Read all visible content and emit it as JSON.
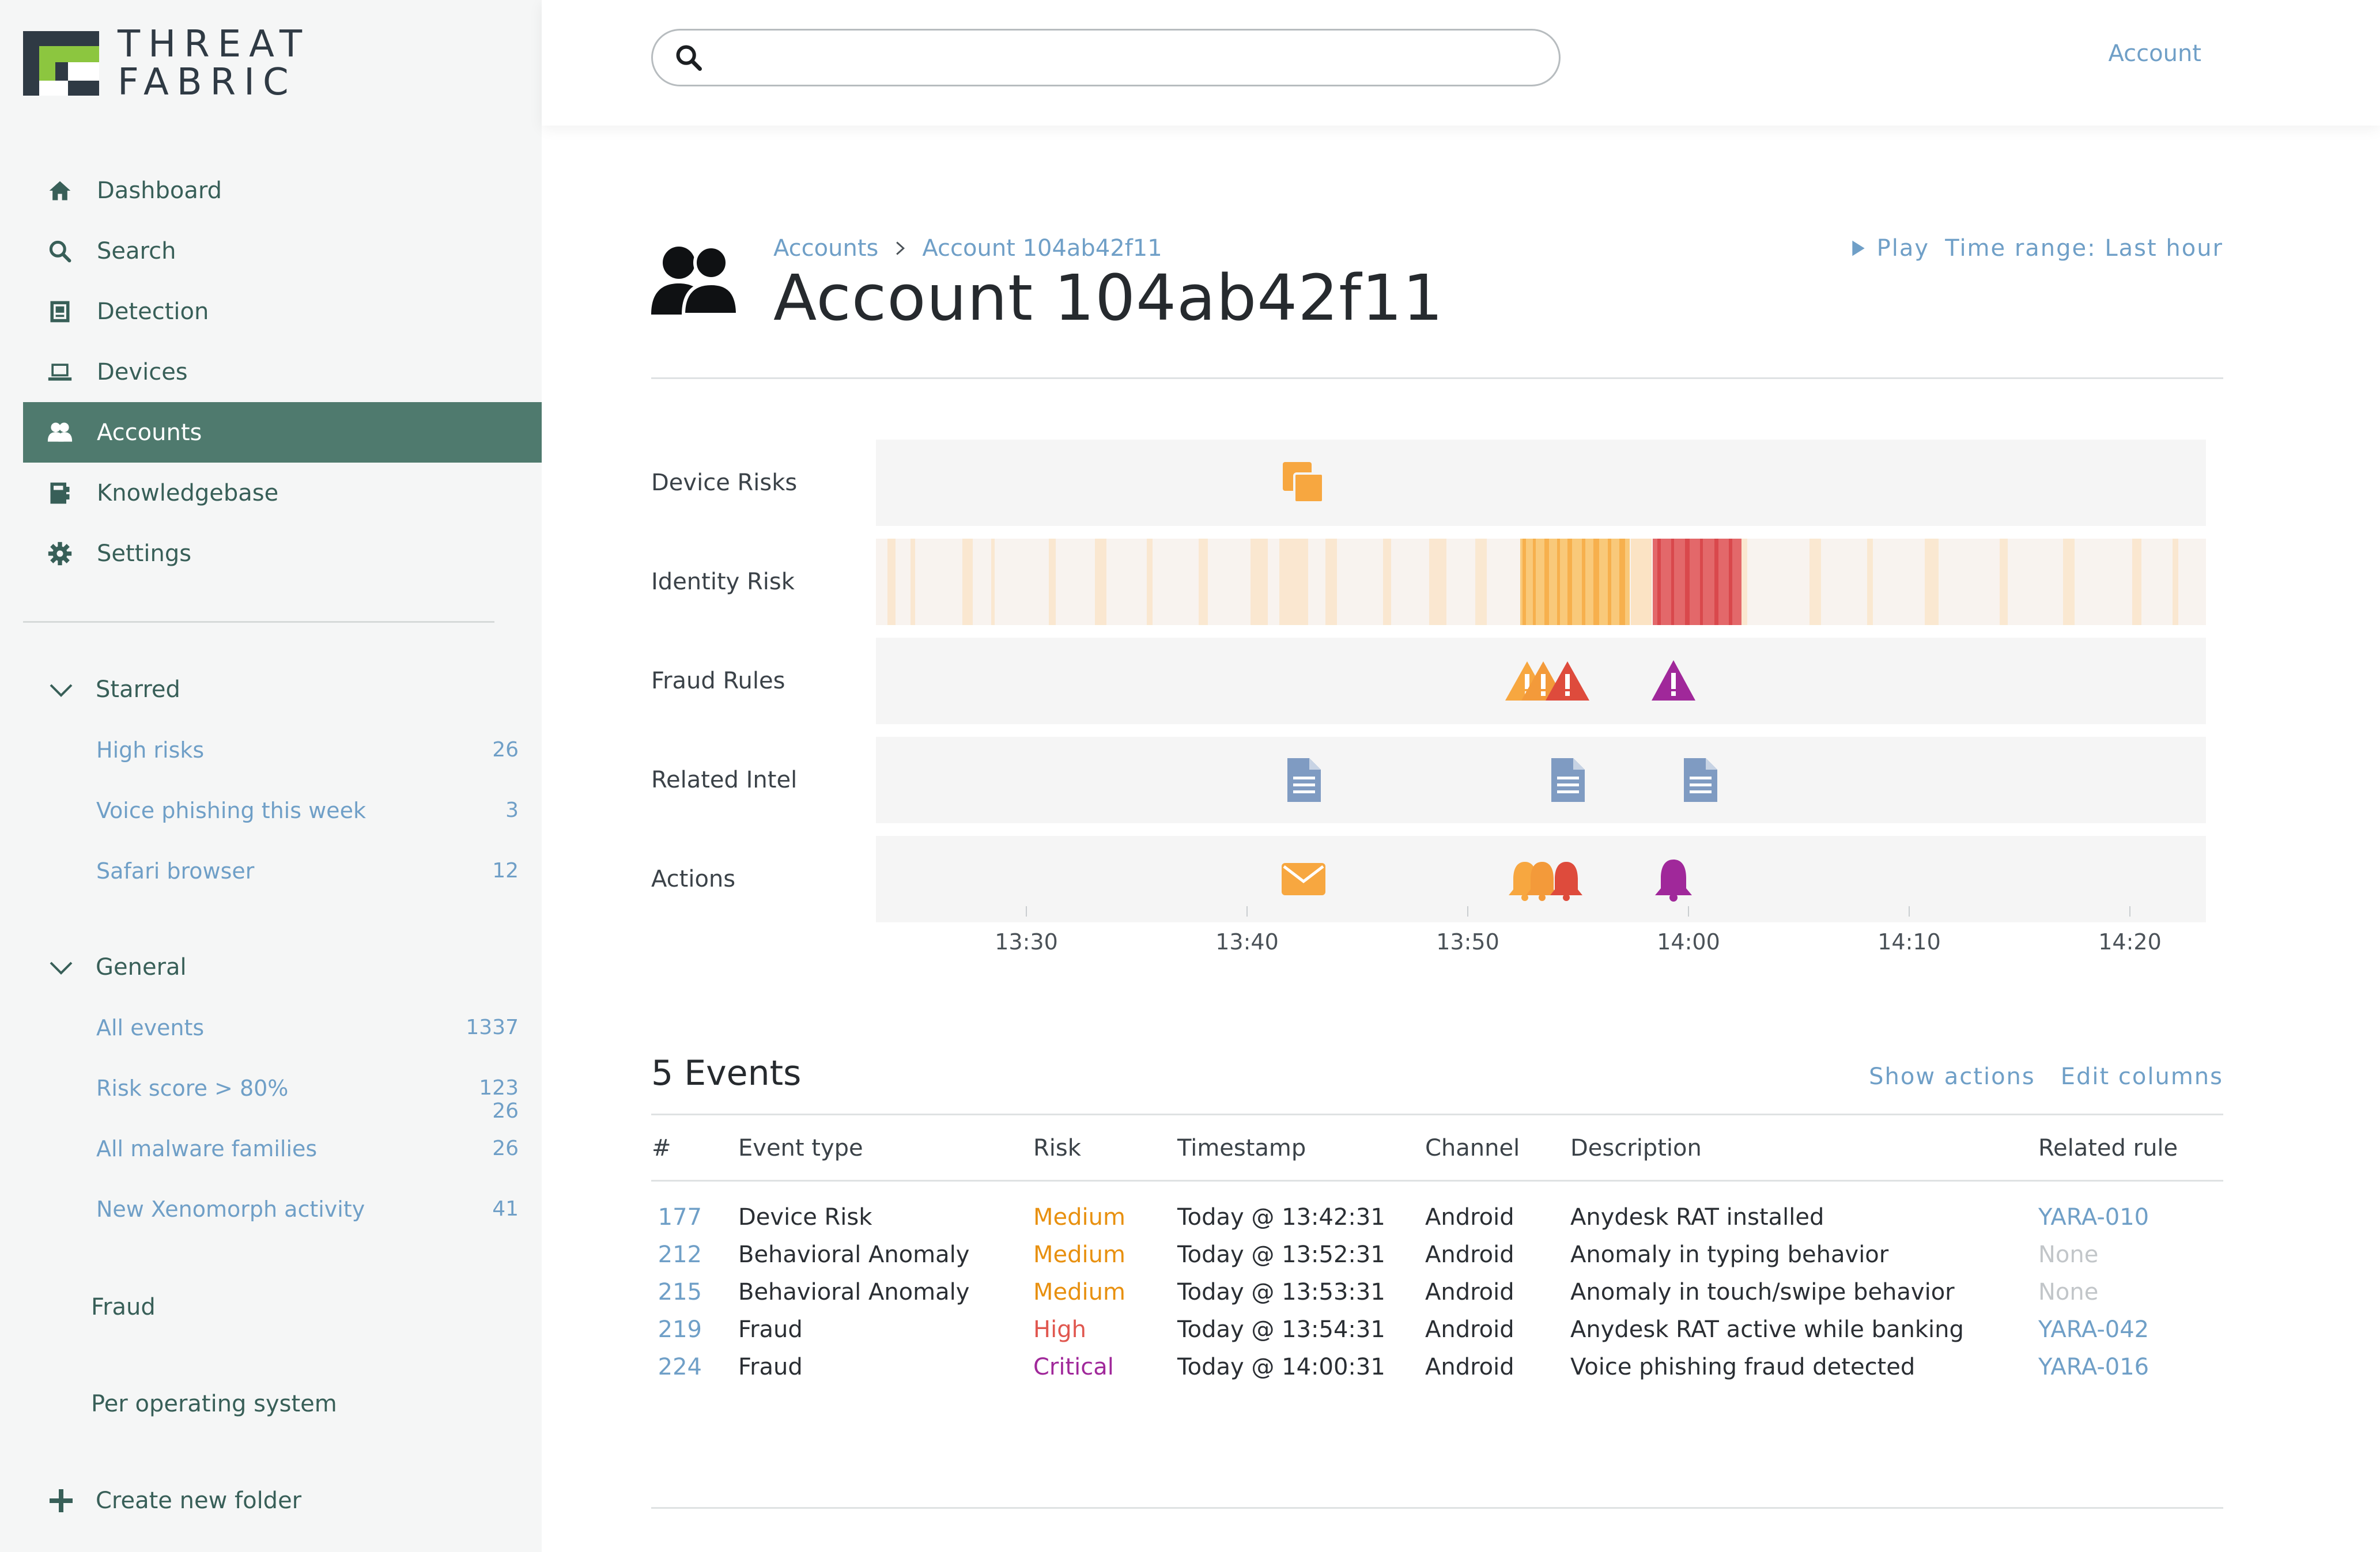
{
  "brand": {
    "line1": "THREAT",
    "line2": "FABRIC"
  },
  "nav": [
    {
      "label": "Dashboard",
      "icon": "home-icon",
      "active": false
    },
    {
      "label": "Search",
      "icon": "search-icon",
      "active": false
    },
    {
      "label": "Detection",
      "icon": "detection-icon",
      "active": false
    },
    {
      "label": "Devices",
      "icon": "laptop-icon",
      "active": false
    },
    {
      "label": "Accounts",
      "icon": "users-icon",
      "active": true
    },
    {
      "label": "Knowledgebase",
      "icon": "book-icon",
      "active": false
    },
    {
      "label": "Settings",
      "icon": "gear-icon",
      "active": false
    }
  ],
  "starred": {
    "label": "Starred",
    "items": [
      {
        "label": "High risks",
        "count": "26"
      },
      {
        "label": "Voice phishing this week",
        "count": "3"
      },
      {
        "label": "Safari browser",
        "count": "12"
      }
    ]
  },
  "general": {
    "label": "General",
    "items": [
      {
        "label": "All events",
        "count": "1337"
      },
      {
        "label": "Risk score > 80%",
        "count": "123"
      },
      {
        "label": "All malware families",
        "count": "26"
      },
      {
        "label": "New Xenomorph activity",
        "count": "41"
      }
    ],
    "extra_count": "26"
  },
  "folders": {
    "fraud": "Fraud",
    "per_os": "Per operating system",
    "create": "Create new folder"
  },
  "header": {
    "search_placeholder": "",
    "account_link": "Account"
  },
  "page": {
    "breadcrumb": [
      "Accounts",
      "Account 104ab42f11"
    ],
    "title": "Account 104ab42f11",
    "play": "Play",
    "time_range": "Time range: Last hour"
  },
  "timeline": {
    "rows": [
      "Device Risks",
      "Identity Risk",
      "Fraud Rules",
      "Related Intel",
      "Actions"
    ],
    "axis_ticks": [
      "13:30",
      "13:40",
      "13:50",
      "14:00",
      "14:10",
      "14:20"
    ],
    "colors": {
      "medium": "#f7a740",
      "high": "#e0574f",
      "critical": "#a0289a",
      "intel": "#7f9bc2"
    }
  },
  "events": {
    "title": "5 Events",
    "show_actions": "Show actions",
    "edit_columns": "Edit columns",
    "columns": [
      "#",
      "Event type",
      "Risk",
      "Timestamp",
      "Channel",
      "Description",
      "Related rule"
    ],
    "rows": [
      {
        "num": "177",
        "type": "Device Risk",
        "risk": "Medium",
        "ts": "Today @ 13:42:31",
        "channel": "Android",
        "desc": "Anydesk RAT installed",
        "rule": "YARA-010"
      },
      {
        "num": "212",
        "type": "Behavioral Anomaly",
        "risk": "Medium",
        "ts": "Today @ 13:52:31",
        "channel": "Android",
        "desc": "Anomaly in typing behavior",
        "rule": "None"
      },
      {
        "num": "215",
        "type": "Behavioral Anomaly",
        "risk": "Medium",
        "ts": "Today @ 13:53:31",
        "channel": "Android",
        "desc": "Anomaly in touch/swipe behavior",
        "rule": "None"
      },
      {
        "num": "219",
        "type": "Fraud",
        "risk": "High",
        "ts": "Today @ 13:54:31",
        "channel": "Android",
        "desc": "Anydesk RAT active while banking",
        "rule": "YARA-042"
      },
      {
        "num": "224",
        "type": "Fraud",
        "risk": "Critical",
        "ts": "Today @ 14:00:31",
        "channel": "Android",
        "desc": "Voice phishing fraud detected",
        "rule": "YARA-016"
      }
    ]
  }
}
